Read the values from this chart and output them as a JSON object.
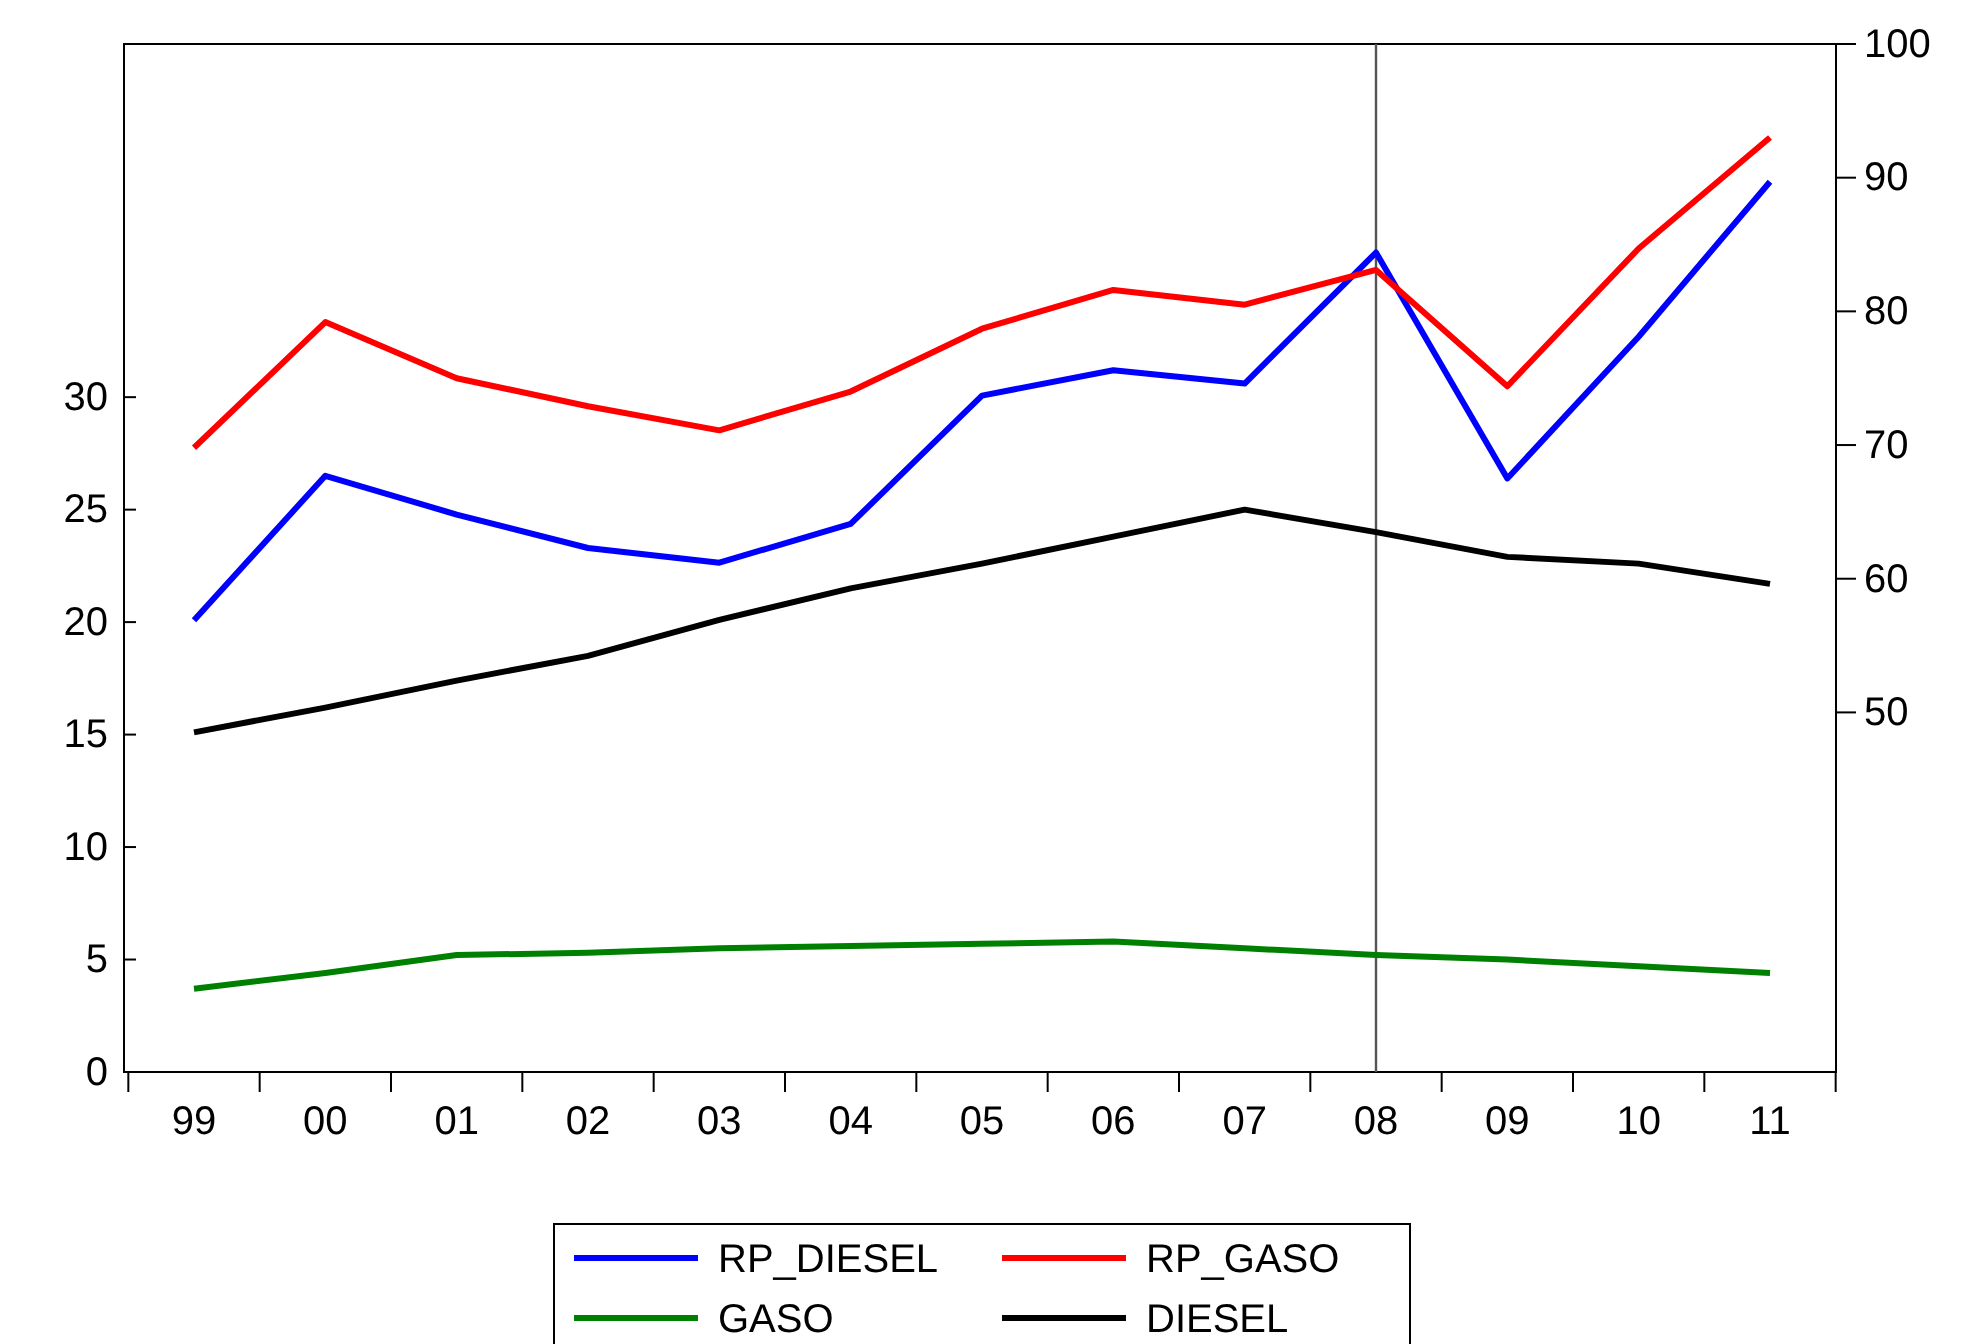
{
  "chart_data": {
    "type": "line",
    "categories": [
      "99",
      "00",
      "01",
      "02",
      "03",
      "04",
      "05",
      "06",
      "07",
      "08",
      "09",
      "10",
      "11"
    ],
    "series": [
      {
        "name": "RP_DIESEL",
        "color": "#0000ff",
        "axis": "y2",
        "values": [
          56.9,
          67.7,
          64.8,
          62.3,
          61.2,
          64.1,
          73.7,
          75.6,
          74.6,
          84.4,
          67.5,
          78.1,
          89.7
        ]
      },
      {
        "name": "RP_GASO",
        "color": "#ff0000",
        "axis": "y2",
        "values": [
          69.8,
          79.2,
          75.0,
          72.9,
          71.1,
          74.0,
          78.7,
          81.6,
          80.5,
          83.1,
          74.4,
          84.7,
          93.0
        ]
      },
      {
        "name": "GASO",
        "color": "#008000",
        "values": [
          3.7,
          4.4,
          5.2,
          5.3,
          5.5,
          5.6,
          5.7,
          5.8,
          5.5,
          5.2,
          5.0,
          4.7,
          4.4
        ]
      },
      {
        "name": "DIESEL",
        "color": "#000000",
        "values": [
          15.1,
          16.2,
          17.4,
          18.5,
          20.1,
          21.5,
          22.6,
          23.8,
          25.0,
          24.0,
          22.9,
          22.6,
          21.7
        ]
      }
    ],
    "ylim": [
      0,
      45.7
    ],
    "yticks": [
      0,
      5,
      10,
      15,
      20,
      25,
      30
    ],
    "y2lim": [
      23.1,
      100
    ],
    "y2ticks": [
      50,
      60,
      70,
      80,
      90,
      100
    ],
    "ref_lines": [
      {
        "axis": "x",
        "value": "08",
        "color": "#555555"
      }
    ],
    "grid": false,
    "legend": "bottom",
    "marker": "none",
    "line_style": "solid"
  }
}
